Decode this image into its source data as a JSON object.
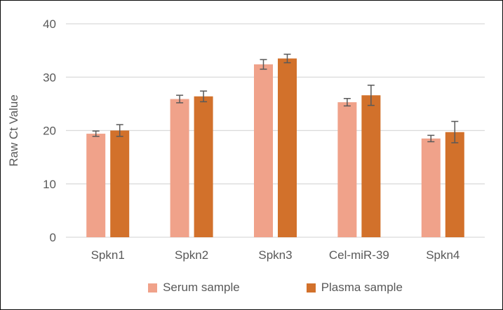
{
  "window": {
    "background": "#ffffff",
    "border_color": "#0a0a0a"
  },
  "colors": {
    "gridline": "#d9d9d9",
    "axis_line": "#d9d9d9",
    "text": "#595959",
    "error_bar": "#595959"
  },
  "chart_data": {
    "type": "bar",
    "title": "",
    "xlabel": "",
    "ylabel": "Raw Ct Value",
    "ylim": [
      0,
      40
    ],
    "yticks": [
      0,
      10,
      20,
      30,
      40
    ],
    "grid": true,
    "legend_position": "bottom",
    "error_bars": true,
    "categories": [
      "Spkn1",
      "Spkn2",
      "Spkn3",
      "Cel-miR-39",
      "Spkn4"
    ],
    "series": [
      {
        "name": "Serum sample",
        "color": "#f0a28a",
        "values": [
          19.4,
          25.9,
          32.4,
          25.3,
          18.5
        ],
        "errors": [
          0.5,
          0.7,
          0.9,
          0.7,
          0.6
        ]
      },
      {
        "name": "Plasma sample",
        "color": "#d2712b",
        "values": [
          20.0,
          26.4,
          33.5,
          26.6,
          19.7
        ],
        "errors": [
          1.1,
          1.0,
          0.8,
          1.9,
          2.0
        ]
      }
    ]
  }
}
